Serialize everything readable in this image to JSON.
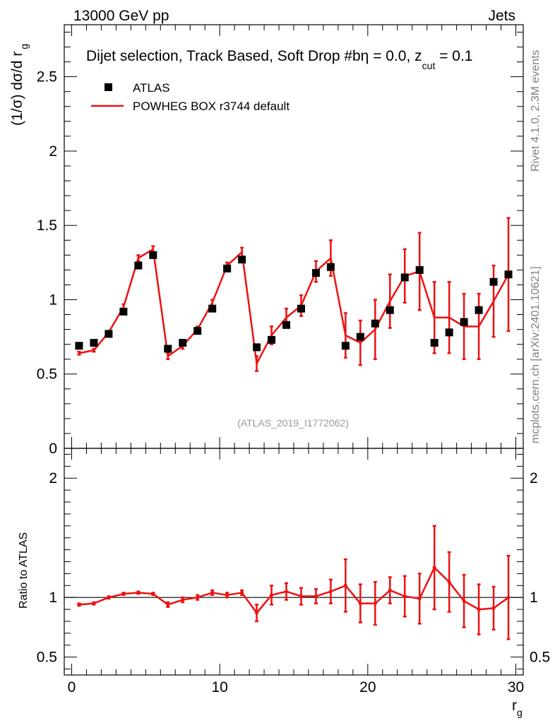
{
  "header": {
    "left_title": "13000 GeV pp",
    "right_title": "Jets"
  },
  "side": {
    "rivet": "Rivet 4.1.0,  2.3M events",
    "mcplots": "mcplots.cern.ch [arXiv:2401.10621]"
  },
  "chart_data": [
    {
      "type": "scatter",
      "title": "Dijet selection, Track Based, Soft Drop #bη = 0.0, z_cut = 0.1",
      "title_parts": {
        "main": "Dijet selection, Track Based, Soft Drop #bη = 0.0, z",
        "sub": "cut",
        "tail": " = 0.1"
      },
      "ylabel": "(1/σ) dσ/d r",
      "ylabel_sub": "g",
      "xlabel": "r",
      "xlabel_sub": "g",
      "watermark": "(ATLAS_2019_I1772062)",
      "xlim": [
        -0.5,
        30.5
      ],
      "ylim": [
        0,
        2.85
      ],
      "xticks": [
        0,
        10,
        20,
        30
      ],
      "yticks": [
        0,
        0.5,
        1,
        1.5,
        2,
        2.5
      ],
      "ytick_labels": [
        "0",
        "0.5",
        "1",
        "1.5",
        "2",
        "2.5"
      ],
      "legend": [
        {
          "name": "ATLAS",
          "marker": "square",
          "color": "#000000"
        },
        {
          "name": "POWHEG BOX r3744 default",
          "marker": "line",
          "color": "#ee1111"
        }
      ],
      "series": [
        {
          "name": "ATLAS",
          "x": [
            0.5,
            1.5,
            2.5,
            3.5,
            4.5,
            5.5,
            6.5,
            7.5,
            8.5,
            9.5,
            10.5,
            11.5,
            12.5,
            13.5,
            14.5,
            15.5,
            16.5,
            17.5,
            18.5,
            19.5,
            20.5,
            21.5,
            22.5,
            23.5,
            24.5,
            25.5,
            26.5,
            27.5,
            28.5,
            29.5
          ],
          "y": [
            0.69,
            0.71,
            0.77,
            0.92,
            1.23,
            1.3,
            0.67,
            0.71,
            0.79,
            0.94,
            1.21,
            1.27,
            0.68,
            0.73,
            0.83,
            0.94,
            1.18,
            1.22,
            0.69,
            0.75,
            0.84,
            0.93,
            1.15,
            1.2,
            0.71,
            0.78,
            0.85,
            0.93,
            1.12,
            1.17
          ]
        },
        {
          "name": "POWHEG BOX r3744 default",
          "x": [
            0.5,
            1.5,
            2.5,
            3.5,
            4.5,
            5.5,
            6.5,
            7.5,
            8.5,
            9.5,
            10.5,
            11.5,
            12.5,
            13.5,
            14.5,
            15.5,
            16.5,
            17.5,
            18.5,
            19.5,
            20.5,
            21.5,
            22.5,
            23.5,
            24.5,
            25.5,
            26.5,
            27.5,
            28.5,
            29.5
          ],
          "y": [
            0.64,
            0.66,
            0.78,
            0.95,
            1.28,
            1.34,
            0.62,
            0.69,
            0.8,
            0.98,
            1.23,
            1.32,
            0.57,
            0.76,
            0.88,
            0.96,
            1.19,
            1.28,
            0.76,
            0.71,
            0.8,
            0.99,
            1.16,
            1.19,
            0.88,
            0.88,
            0.82,
            0.82,
            0.99,
            1.17
          ],
          "yerr": [
            0.01,
            0.01,
            0.01,
            0.02,
            0.02,
            0.02,
            0.02,
            0.02,
            0.02,
            0.02,
            0.02,
            0.03,
            0.05,
            0.06,
            0.06,
            0.07,
            0.07,
            0.12,
            0.15,
            0.15,
            0.2,
            0.18,
            0.18,
            0.26,
            0.24,
            0.24,
            0.22,
            0.22,
            0.24,
            0.38
          ]
        }
      ]
    },
    {
      "type": "line",
      "ylabel": "Ratio to ATLAS",
      "xlim": [
        -0.5,
        30.5
      ],
      "ylim": [
        0.35,
        2.25
      ],
      "xticks": [
        0,
        10,
        20,
        30
      ],
      "xtick_labels": [
        "0",
        "10",
        "20",
        "30"
      ],
      "yticks": [
        0.5,
        1,
        2
      ],
      "ytick_labels": [
        "0.5",
        "1",
        "2"
      ],
      "reference_line": 1,
      "series": [
        {
          "name": "POWHEG BOX r3744 default / ATLAS",
          "color": "#ee1111",
          "x": [
            0.5,
            1.5,
            2.5,
            3.5,
            4.5,
            5.5,
            6.5,
            7.5,
            8.5,
            9.5,
            10.5,
            11.5,
            12.5,
            13.5,
            14.5,
            15.5,
            16.5,
            17.5,
            18.5,
            19.5,
            20.5,
            21.5,
            22.5,
            23.5,
            24.5,
            25.5,
            26.5,
            27.5,
            28.5,
            29.5
          ],
          "y": [
            0.94,
            0.95,
            1.0,
            1.03,
            1.04,
            1.03,
            0.94,
            0.98,
            1.0,
            1.04,
            1.02,
            1.04,
            0.87,
            1.02,
            1.05,
            1.01,
            1.01,
            1.05,
            1.1,
            0.95,
            0.95,
            1.06,
            1.01,
            0.99,
            1.25,
            1.13,
            0.97,
            0.9,
            0.91,
            1.0
          ],
          "yerr": [
            0.01,
            0.01,
            0.01,
            0.01,
            0.01,
            0.01,
            0.02,
            0.02,
            0.02,
            0.02,
            0.02,
            0.02,
            0.07,
            0.08,
            0.07,
            0.07,
            0.06,
            0.1,
            0.22,
            0.16,
            0.18,
            0.11,
            0.17,
            0.21,
            0.35,
            0.25,
            0.22,
            0.21,
            0.18,
            0.35
          ]
        }
      ]
    }
  ]
}
